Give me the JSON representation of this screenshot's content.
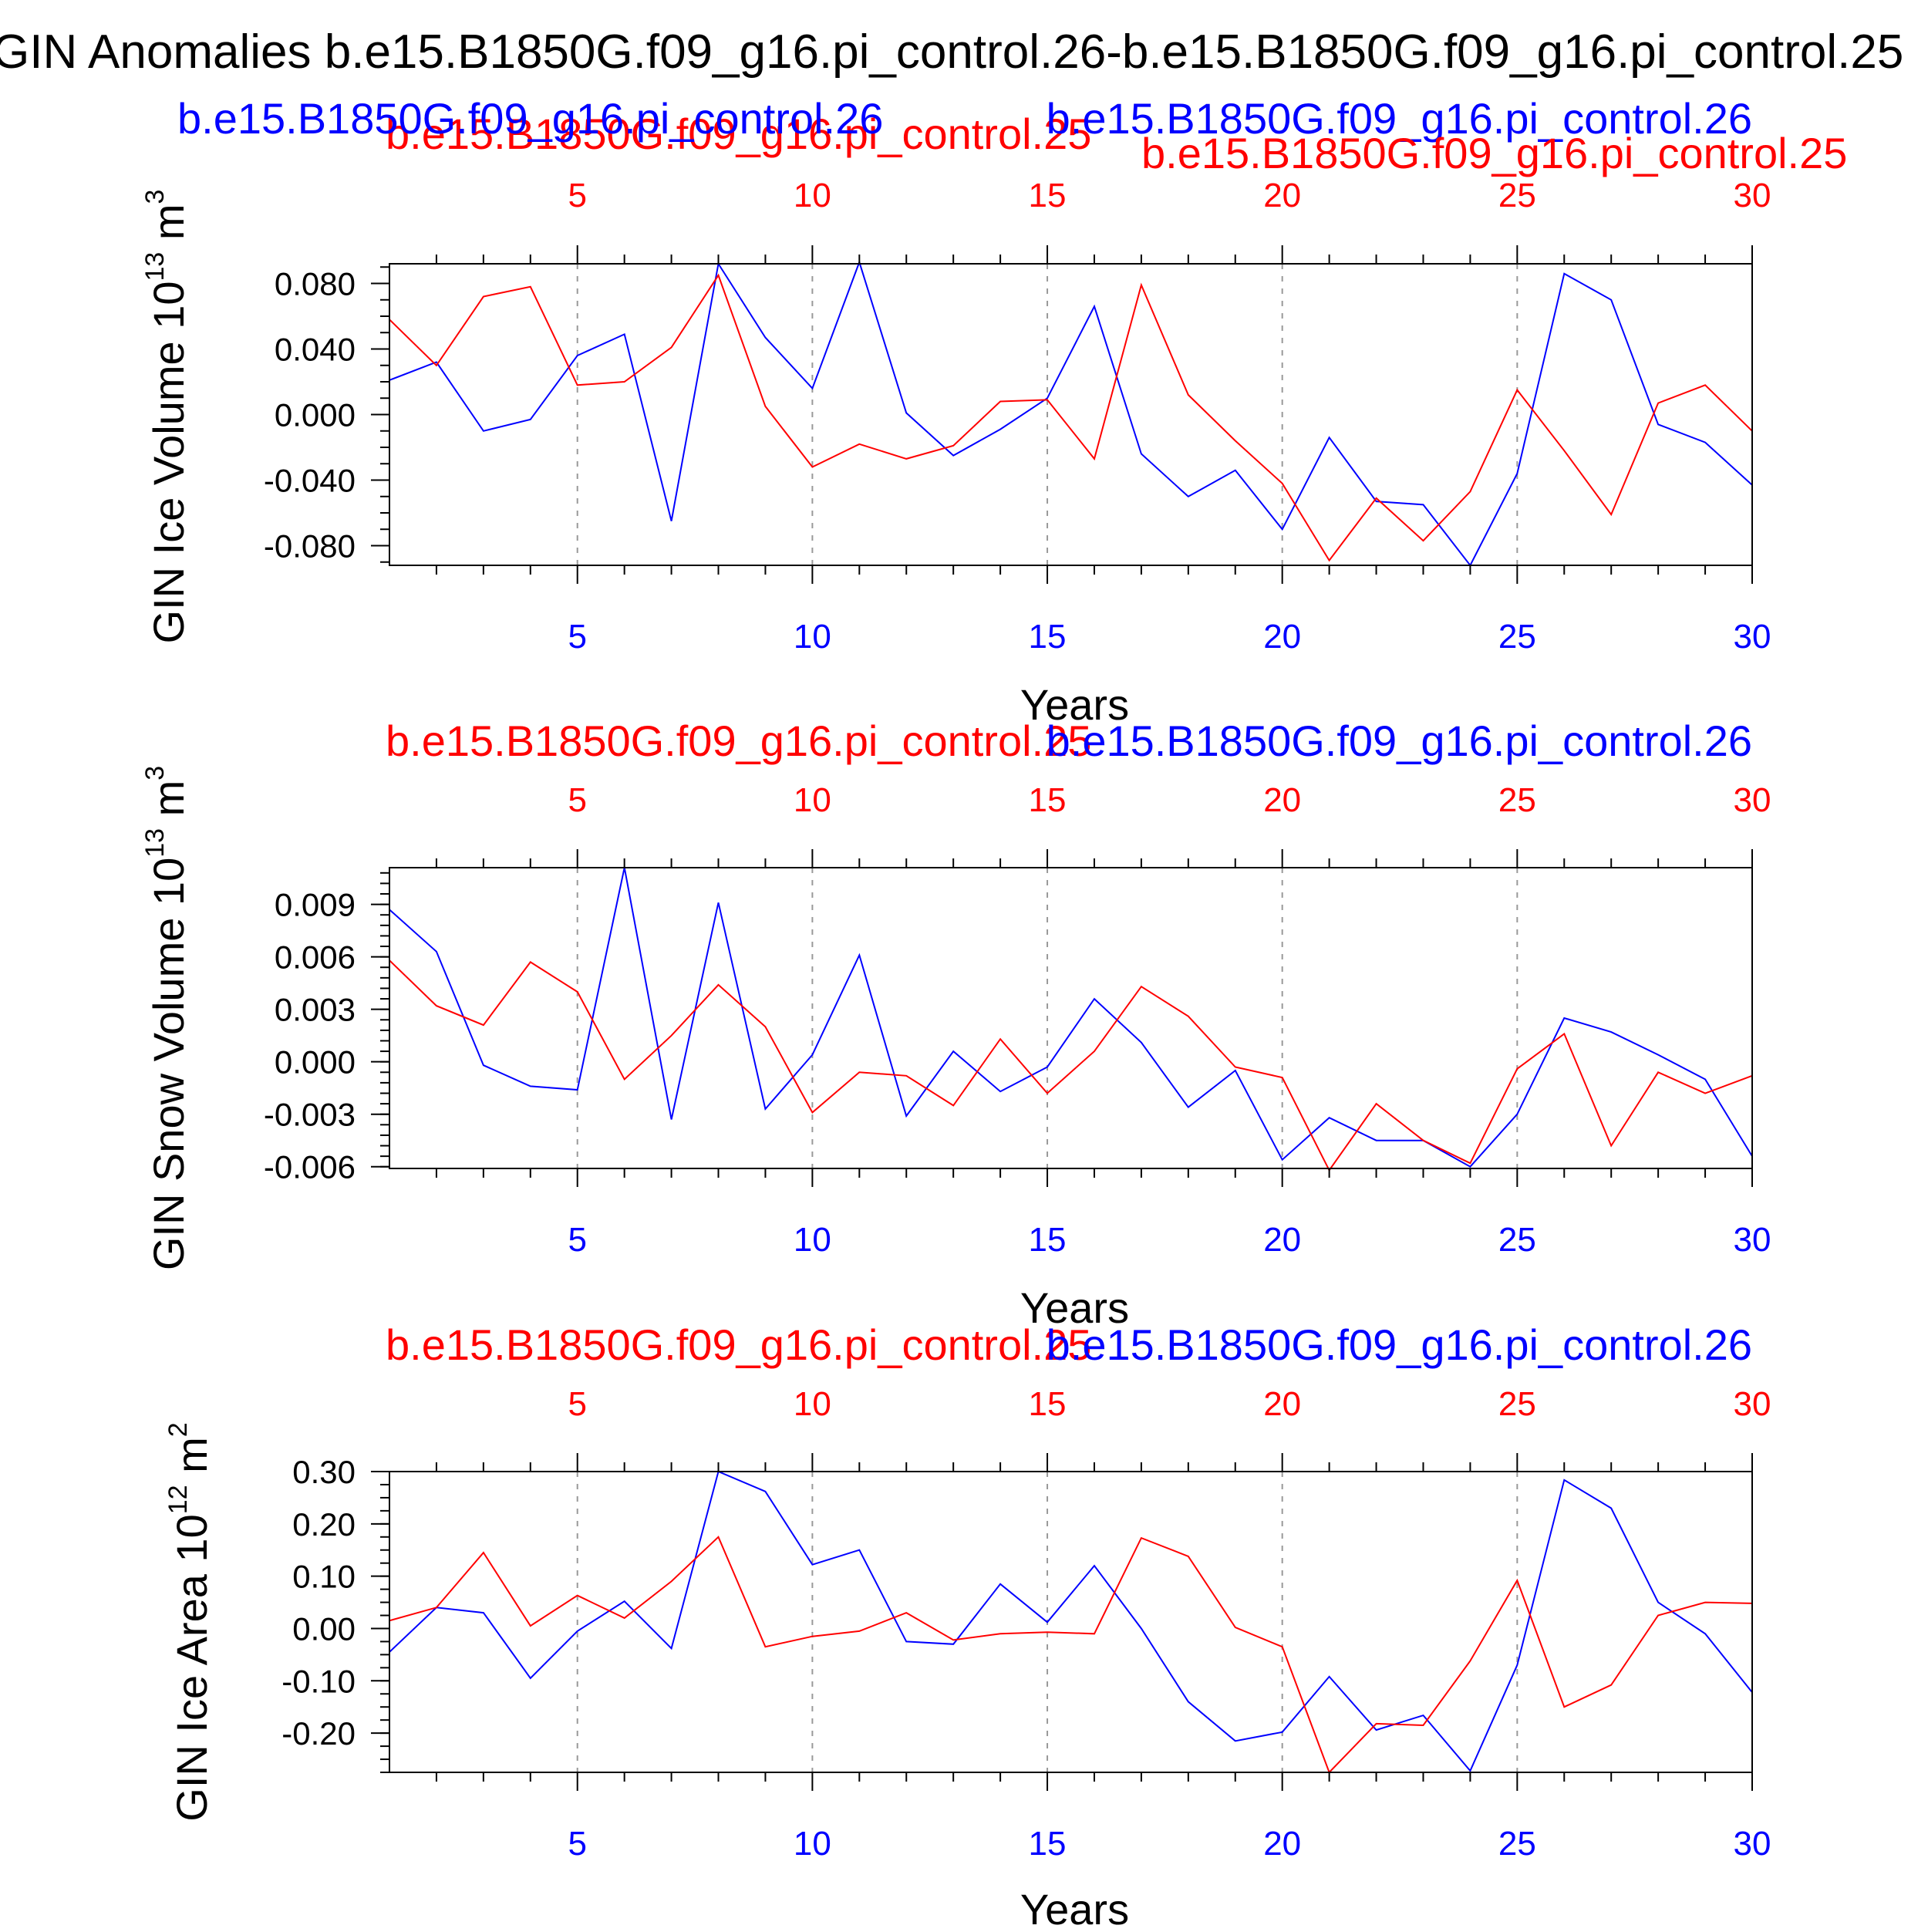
{
  "title": "GIN Anomalies b.e15.B1850G.f09_g16.pi_control.26-b.e15.B1850G.f09_g16.pi_control.25",
  "colors": {
    "run26": "#0000ff",
    "run25": "#ff0000",
    "axis": "#000000",
    "grid": "#999999"
  },
  "chart_data": [
    {
      "type": "line",
      "x": [
        1,
        2,
        3,
        4,
        5,
        6,
        7,
        8,
        9,
        10,
        11,
        12,
        13,
        14,
        15,
        16,
        17,
        18,
        19,
        20,
        21,
        22,
        23,
        24,
        25,
        26,
        27,
        28,
        29,
        30
      ],
      "xlim": [
        1,
        30
      ],
      "ylim": [
        -0.092,
        0.092
      ],
      "xlabel": "Years",
      "ylabel_main": "GIN Ice Volume 10",
      "ylabel_exp": "13",
      "ylabel_unit": " m",
      "ylabel_unit_exp": "3",
      "ytick_values": [
        -0.08,
        -0.04,
        0.0,
        0.04,
        0.08
      ],
      "ytick_labels": [
        "-0.080",
        "-0.040",
        "0.000",
        "0.040",
        "0.080"
      ],
      "yminor_step": 0.01,
      "series": [
        {
          "name": "b.e15.B1850G.f09_g16.pi_control.26",
          "color": "#0000ff",
          "values": [
            0.021,
            0.032,
            -0.01,
            -0.003,
            0.036,
            0.049,
            -0.065,
            0.092,
            0.047,
            0.016,
            0.093,
            0.001,
            -0.025,
            -0.009,
            0.01,
            0.066,
            -0.024,
            -0.05,
            -0.034,
            -0.07,
            -0.014,
            -0.053,
            -0.055,
            -0.092,
            -0.036,
            0.086,
            0.07,
            -0.006,
            -0.017,
            -0.043
          ]
        },
        {
          "name": "b.e15.B1850G.f09_g16.pi_control.25",
          "color": "#ff0000",
          "values": [
            0.058,
            0.03,
            0.072,
            0.078,
            0.018,
            0.02,
            0.041,
            0.085,
            0.005,
            -0.032,
            -0.018,
            -0.027,
            -0.019,
            0.008,
            0.009,
            -0.027,
            0.079,
            0.012,
            -0.016,
            -0.042,
            -0.089,
            -0.051,
            -0.077,
            -0.047,
            0.015,
            -0.022,
            -0.061,
            0.007,
            0.018,
            -0.01
          ]
        }
      ]
    },
    {
      "type": "line",
      "x": [
        1,
        2,
        3,
        4,
        5,
        6,
        7,
        8,
        9,
        10,
        11,
        12,
        13,
        14,
        15,
        16,
        17,
        18,
        19,
        20,
        21,
        22,
        23,
        24,
        25,
        26,
        27,
        28,
        29,
        30
      ],
      "xlim": [
        1,
        30
      ],
      "ylim": [
        -0.0061,
        0.0111
      ],
      "xlabel": "Years",
      "ylabel_main": "GIN Snow Volume 10",
      "ylabel_exp": "13",
      "ylabel_unit": " m",
      "ylabel_unit_exp": "3",
      "ytick_values": [
        -0.006,
        -0.003,
        0.0,
        0.003,
        0.006,
        0.009
      ],
      "ytick_labels": [
        "-0.006",
        "-0.003",
        "0.000",
        "0.003",
        "0.006",
        "0.009"
      ],
      "yminor_step": 0.0006,
      "series": [
        {
          "name": "b.e15.B1850G.f09_g16.pi_control.26",
          "color": "#0000ff",
          "values": [
            0.0087,
            0.0063,
            -0.0002,
            -0.0014,
            -0.0016,
            0.0111,
            -0.0033,
            0.0091,
            -0.0027,
            0.0004,
            0.0061,
            -0.0031,
            0.0006,
            -0.0017,
            -0.0003,
            0.0036,
            0.0011,
            -0.0026,
            -0.0005,
            -0.0056,
            -0.0032,
            -0.0045,
            -0.0045,
            -0.006,
            -0.003,
            0.0025,
            0.0017,
            0.0004,
            -0.001,
            -0.0054
          ]
        },
        {
          "name": "b.e15.B1850G.f09_g16.pi_control.25",
          "color": "#ff0000",
          "values": [
            0.0058,
            0.0032,
            0.0021,
            0.0057,
            0.004,
            -0.001,
            0.0015,
            0.0044,
            0.002,
            -0.0029,
            -0.0006,
            -0.0008,
            -0.0025,
            0.0013,
            -0.0018,
            0.0006,
            0.0043,
            0.0026,
            -0.0003,
            -0.0009,
            -0.0062,
            -0.0024,
            -0.0045,
            -0.0058,
            -0.0004,
            0.0016,
            -0.0048,
            -0.0006,
            -0.0018,
            -0.0008
          ]
        }
      ]
    },
    {
      "type": "line",
      "x": [
        1,
        2,
        3,
        4,
        5,
        6,
        7,
        8,
        9,
        10,
        11,
        12,
        13,
        14,
        15,
        16,
        17,
        18,
        19,
        20,
        21,
        22,
        23,
        24,
        25,
        26,
        27,
        28,
        29,
        30
      ],
      "xlim": [
        1,
        30
      ],
      "ylim": [
        -0.275,
        0.3
      ],
      "xlabel": "Years",
      "ylabel_main": "GIN Ice Area 10",
      "ylabel_exp": "12",
      "ylabel_unit": " m",
      "ylabel_unit_exp": "2",
      "ytick_values": [
        -0.2,
        -0.1,
        0.0,
        0.1,
        0.2,
        0.3
      ],
      "ytick_labels": [
        "-0.20",
        "-0.10",
        "0.00",
        "0.10",
        "0.20",
        "0.30"
      ],
      "yminor_step": 0.025,
      "series": [
        {
          "name": "b.e15.B1850G.f09_g16.pi_control.26",
          "color": "#0000ff",
          "values": [
            -0.045,
            0.04,
            0.03,
            -0.095,
            -0.005,
            0.052,
            -0.038,
            0.3,
            0.262,
            0.122,
            0.15,
            -0.025,
            -0.03,
            0.085,
            0.012,
            0.12,
            0.0,
            -0.14,
            -0.215,
            -0.198,
            -0.092,
            -0.194,
            -0.166,
            -0.272,
            -0.07,
            0.284,
            0.23,
            0.05,
            -0.01,
            -0.122
          ]
        },
        {
          "name": "b.e15.B1850G.f09_g16.pi_control.25",
          "color": "#ff0000",
          "values": [
            0.015,
            0.04,
            0.145,
            0.005,
            0.063,
            0.02,
            0.09,
            0.175,
            -0.035,
            -0.015,
            -0.005,
            0.03,
            -0.022,
            -0.01,
            -0.007,
            -0.01,
            0.173,
            0.138,
            0.002,
            -0.035,
            -0.275,
            -0.182,
            -0.185,
            -0.062,
            0.092,
            -0.15,
            -0.108,
            0.025,
            0.05,
            0.048
          ]
        }
      ]
    }
  ],
  "series_labels": {
    "run26": "b.e15.B1850G.f09_g16.pi_control.26",
    "run25": "b.e15.B1850G.f09_g16.pi_control.25"
  },
  "xtick_labels": [
    "5",
    "10",
    "15",
    "20",
    "25",
    "30"
  ]
}
